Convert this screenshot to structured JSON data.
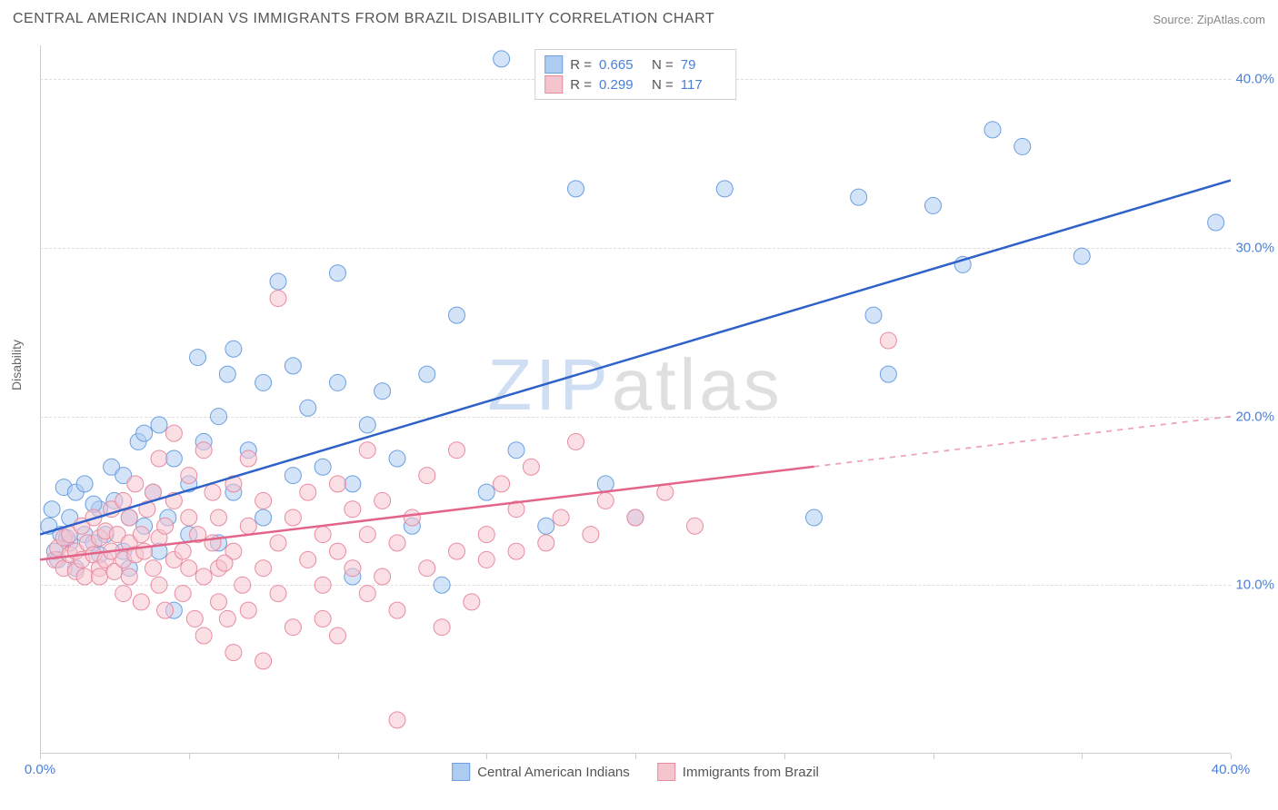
{
  "header": {
    "title": "CENTRAL AMERICAN INDIAN VS IMMIGRANTS FROM BRAZIL DISABILITY CORRELATION CHART",
    "source": "Source: ZipAtlas.com"
  },
  "ylabel": "Disability",
  "watermark": {
    "prefix": "ZIP",
    "suffix": "atlas"
  },
  "chart": {
    "type": "scatter",
    "xlim": [
      0,
      40
    ],
    "ylim": [
      0,
      42
    ],
    "background_color": "#ffffff",
    "grid_color": "#dddddd",
    "grid_dash": true,
    "y_gridlines": [
      10,
      20,
      30,
      40
    ],
    "x_ticks": [
      0,
      5,
      10,
      15,
      20,
      25,
      30,
      35,
      40
    ],
    "x_tick_labels": {
      "0": "0.0%",
      "40": "40.0%"
    },
    "y_tick_labels": {
      "10": "10.0%",
      "20": "20.0%",
      "30": "30.0%",
      "40": "40.0%"
    },
    "axis_color": "#cccccc",
    "tick_label_color": "#4a7fd8",
    "tick_label_fontsize": 15,
    "ylabel_fontsize": 14,
    "ylabel_color": "#666666",
    "marker_radius": 9,
    "marker_opacity": 0.55,
    "line_width": 2.5
  },
  "series": [
    {
      "key": "cai",
      "label": "Central American Indians",
      "color_fill": "#aeccf2",
      "color_stroke": "#6b9fe0",
      "line_color": "#2e62c9",
      "R": "0.665",
      "N": "79",
      "regression": {
        "x1": 0,
        "y1": 13.0,
        "x2": 40,
        "y2": 34.0,
        "solid_until_x": 40
      },
      "points": [
        [
          0.3,
          13.5
        ],
        [
          0.5,
          12.0
        ],
        [
          0.4,
          14.5
        ],
        [
          0.6,
          11.5
        ],
        [
          0.8,
          15.8
        ],
        [
          0.7,
          13.0
        ],
        [
          1.0,
          14.0
        ],
        [
          1.0,
          12.5
        ],
        [
          1.2,
          11.0
        ],
        [
          1.2,
          15.5
        ],
        [
          1.5,
          13.0
        ],
        [
          1.5,
          16.0
        ],
        [
          1.8,
          12.5
        ],
        [
          2.0,
          14.5
        ],
        [
          2.0,
          11.8
        ],
        [
          2.2,
          13.0
        ],
        [
          2.4,
          17.0
        ],
        [
          2.5,
          15.0
        ],
        [
          2.8,
          12.0
        ],
        [
          2.8,
          16.5
        ],
        [
          3.0,
          14.0
        ],
        [
          3.0,
          11.0
        ],
        [
          3.3,
          18.5
        ],
        [
          3.5,
          13.5
        ],
        [
          3.5,
          19.0
        ],
        [
          3.8,
          15.5
        ],
        [
          4.0,
          12.0
        ],
        [
          4.0,
          19.5
        ],
        [
          4.3,
          14.0
        ],
        [
          4.5,
          17.5
        ],
        [
          4.5,
          8.5
        ],
        [
          5.0,
          16.0
        ],
        [
          5.0,
          13.0
        ],
        [
          5.3,
          23.5
        ],
        [
          5.5,
          18.5
        ],
        [
          6.0,
          20.0
        ],
        [
          6.0,
          12.5
        ],
        [
          6.3,
          22.5
        ],
        [
          6.5,
          15.5
        ],
        [
          6.5,
          24.0
        ],
        [
          7.0,
          18.0
        ],
        [
          7.5,
          22.0
        ],
        [
          7.5,
          14.0
        ],
        [
          8.0,
          28.0
        ],
        [
          8.5,
          16.5
        ],
        [
          8.5,
          23.0
        ],
        [
          9.0,
          20.5
        ],
        [
          9.5,
          17.0
        ],
        [
          10.0,
          28.5
        ],
        [
          10.0,
          22.0
        ],
        [
          10.5,
          16.0
        ],
        [
          10.5,
          10.5
        ],
        [
          11.0,
          19.5
        ],
        [
          11.5,
          21.5
        ],
        [
          12.0,
          17.5
        ],
        [
          12.5,
          13.5
        ],
        [
          13.0,
          22.5
        ],
        [
          13.5,
          10.0
        ],
        [
          14.0,
          26.0
        ],
        [
          15.0,
          15.5
        ],
        [
          15.5,
          41.2
        ],
        [
          16.0,
          18.0
        ],
        [
          17.0,
          13.5
        ],
        [
          18.0,
          33.5
        ],
        [
          19.0,
          16.0
        ],
        [
          20.0,
          14.0
        ],
        [
          23.0,
          33.5
        ],
        [
          26.0,
          14.0
        ],
        [
          27.5,
          33.0
        ],
        [
          28.0,
          26.0
        ],
        [
          28.5,
          22.5
        ],
        [
          30.0,
          32.5
        ],
        [
          31.0,
          29.0
        ],
        [
          32.0,
          37.0
        ],
        [
          33.0,
          36.0
        ],
        [
          35.0,
          29.5
        ],
        [
          39.5,
          31.5
        ],
        [
          1.8,
          14.8
        ],
        [
          0.9,
          12.8
        ]
      ]
    },
    {
      "key": "brazil",
      "label": "Immigrants from Brazil",
      "color_fill": "#f5c5cf",
      "color_stroke": "#e98ba0",
      "line_color": "#e36488",
      "R": "0.299",
      "N": "117",
      "regression": {
        "x1": 0,
        "y1": 11.5,
        "x2": 40,
        "y2": 20.0,
        "solid_until_x": 26
      },
      "points": [
        [
          0.5,
          11.5
        ],
        [
          0.6,
          12.2
        ],
        [
          0.8,
          11.0
        ],
        [
          0.8,
          12.8
        ],
        [
          1.0,
          11.8
        ],
        [
          1.0,
          13.0
        ],
        [
          1.2,
          10.8
        ],
        [
          1.2,
          12.0
        ],
        [
          1.4,
          11.5
        ],
        [
          1.4,
          13.5
        ],
        [
          1.5,
          10.5
        ],
        [
          1.6,
          12.5
        ],
        [
          1.8,
          11.8
        ],
        [
          1.8,
          14.0
        ],
        [
          2.0,
          11.0
        ],
        [
          2.0,
          12.8
        ],
        [
          2.0,
          10.5
        ],
        [
          2.2,
          13.2
        ],
        [
          2.2,
          11.5
        ],
        [
          2.4,
          12.0
        ],
        [
          2.4,
          14.5
        ],
        [
          2.5,
          10.8
        ],
        [
          2.6,
          13.0
        ],
        [
          2.8,
          11.5
        ],
        [
          2.8,
          15.0
        ],
        [
          2.8,
          9.5
        ],
        [
          3.0,
          12.5
        ],
        [
          3.0,
          14.0
        ],
        [
          3.0,
          10.5
        ],
        [
          3.2,
          11.8
        ],
        [
          3.2,
          16.0
        ],
        [
          3.4,
          13.0
        ],
        [
          3.4,
          9.0
        ],
        [
          3.5,
          12.0
        ],
        [
          3.6,
          14.5
        ],
        [
          3.8,
          11.0
        ],
        [
          3.8,
          15.5
        ],
        [
          4.0,
          12.8
        ],
        [
          4.0,
          10.0
        ],
        [
          4.0,
          17.5
        ],
        [
          4.2,
          13.5
        ],
        [
          4.2,
          8.5
        ],
        [
          4.5,
          11.5
        ],
        [
          4.5,
          15.0
        ],
        [
          4.5,
          19.0
        ],
        [
          4.8,
          12.0
        ],
        [
          4.8,
          9.5
        ],
        [
          5.0,
          14.0
        ],
        [
          5.0,
          11.0
        ],
        [
          5.0,
          16.5
        ],
        [
          5.2,
          8.0
        ],
        [
          5.3,
          13.0
        ],
        [
          5.5,
          10.5
        ],
        [
          5.5,
          18.0
        ],
        [
          5.5,
          7.0
        ],
        [
          5.8,
          12.5
        ],
        [
          5.8,
          15.5
        ],
        [
          6.0,
          11.0
        ],
        [
          6.0,
          9.0
        ],
        [
          6.0,
          14.0
        ],
        [
          6.3,
          8.0
        ],
        [
          6.5,
          12.0
        ],
        [
          6.5,
          16.0
        ],
        [
          6.5,
          6.0
        ],
        [
          6.8,
          10.0
        ],
        [
          7.0,
          13.5
        ],
        [
          7.0,
          8.5
        ],
        [
          7.0,
          17.5
        ],
        [
          7.5,
          11.0
        ],
        [
          7.5,
          15.0
        ],
        [
          7.5,
          5.5
        ],
        [
          8.0,
          12.5
        ],
        [
          8.0,
          9.5
        ],
        [
          8.0,
          27.0
        ],
        [
          8.5,
          14.0
        ],
        [
          8.5,
          7.5
        ],
        [
          9.0,
          11.5
        ],
        [
          9.0,
          15.5
        ],
        [
          9.5,
          10.0
        ],
        [
          9.5,
          13.0
        ],
        [
          9.5,
          8.0
        ],
        [
          10.0,
          12.0
        ],
        [
          10.0,
          16.0
        ],
        [
          10.0,
          7.0
        ],
        [
          10.5,
          11.0
        ],
        [
          10.5,
          14.5
        ],
        [
          11.0,
          9.5
        ],
        [
          11.0,
          13.0
        ],
        [
          11.0,
          18.0
        ],
        [
          11.5,
          10.5
        ],
        [
          11.5,
          15.0
        ],
        [
          12.0,
          8.5
        ],
        [
          12.0,
          12.5
        ],
        [
          12.0,
          2.0
        ],
        [
          12.5,
          14.0
        ],
        [
          13.0,
          11.0
        ],
        [
          13.0,
          16.5
        ],
        [
          13.5,
          7.5
        ],
        [
          14.0,
          12.0
        ],
        [
          14.0,
          18.0
        ],
        [
          14.5,
          9.0
        ],
        [
          15.0,
          13.0
        ],
        [
          15.0,
          11.5
        ],
        [
          15.5,
          16.0
        ],
        [
          16.0,
          14.5
        ],
        [
          16.0,
          12.0
        ],
        [
          16.5,
          17.0
        ],
        [
          17.0,
          12.5
        ],
        [
          17.5,
          14.0
        ],
        [
          18.0,
          18.5
        ],
        [
          18.5,
          13.0
        ],
        [
          19.0,
          15.0
        ],
        [
          20.0,
          14.0
        ],
        [
          21.0,
          15.5
        ],
        [
          22.0,
          13.5
        ],
        [
          28.5,
          24.5
        ],
        [
          6.2,
          11.3
        ]
      ]
    }
  ],
  "legend_top_labels": {
    "R": "R =",
    "N": "N ="
  }
}
